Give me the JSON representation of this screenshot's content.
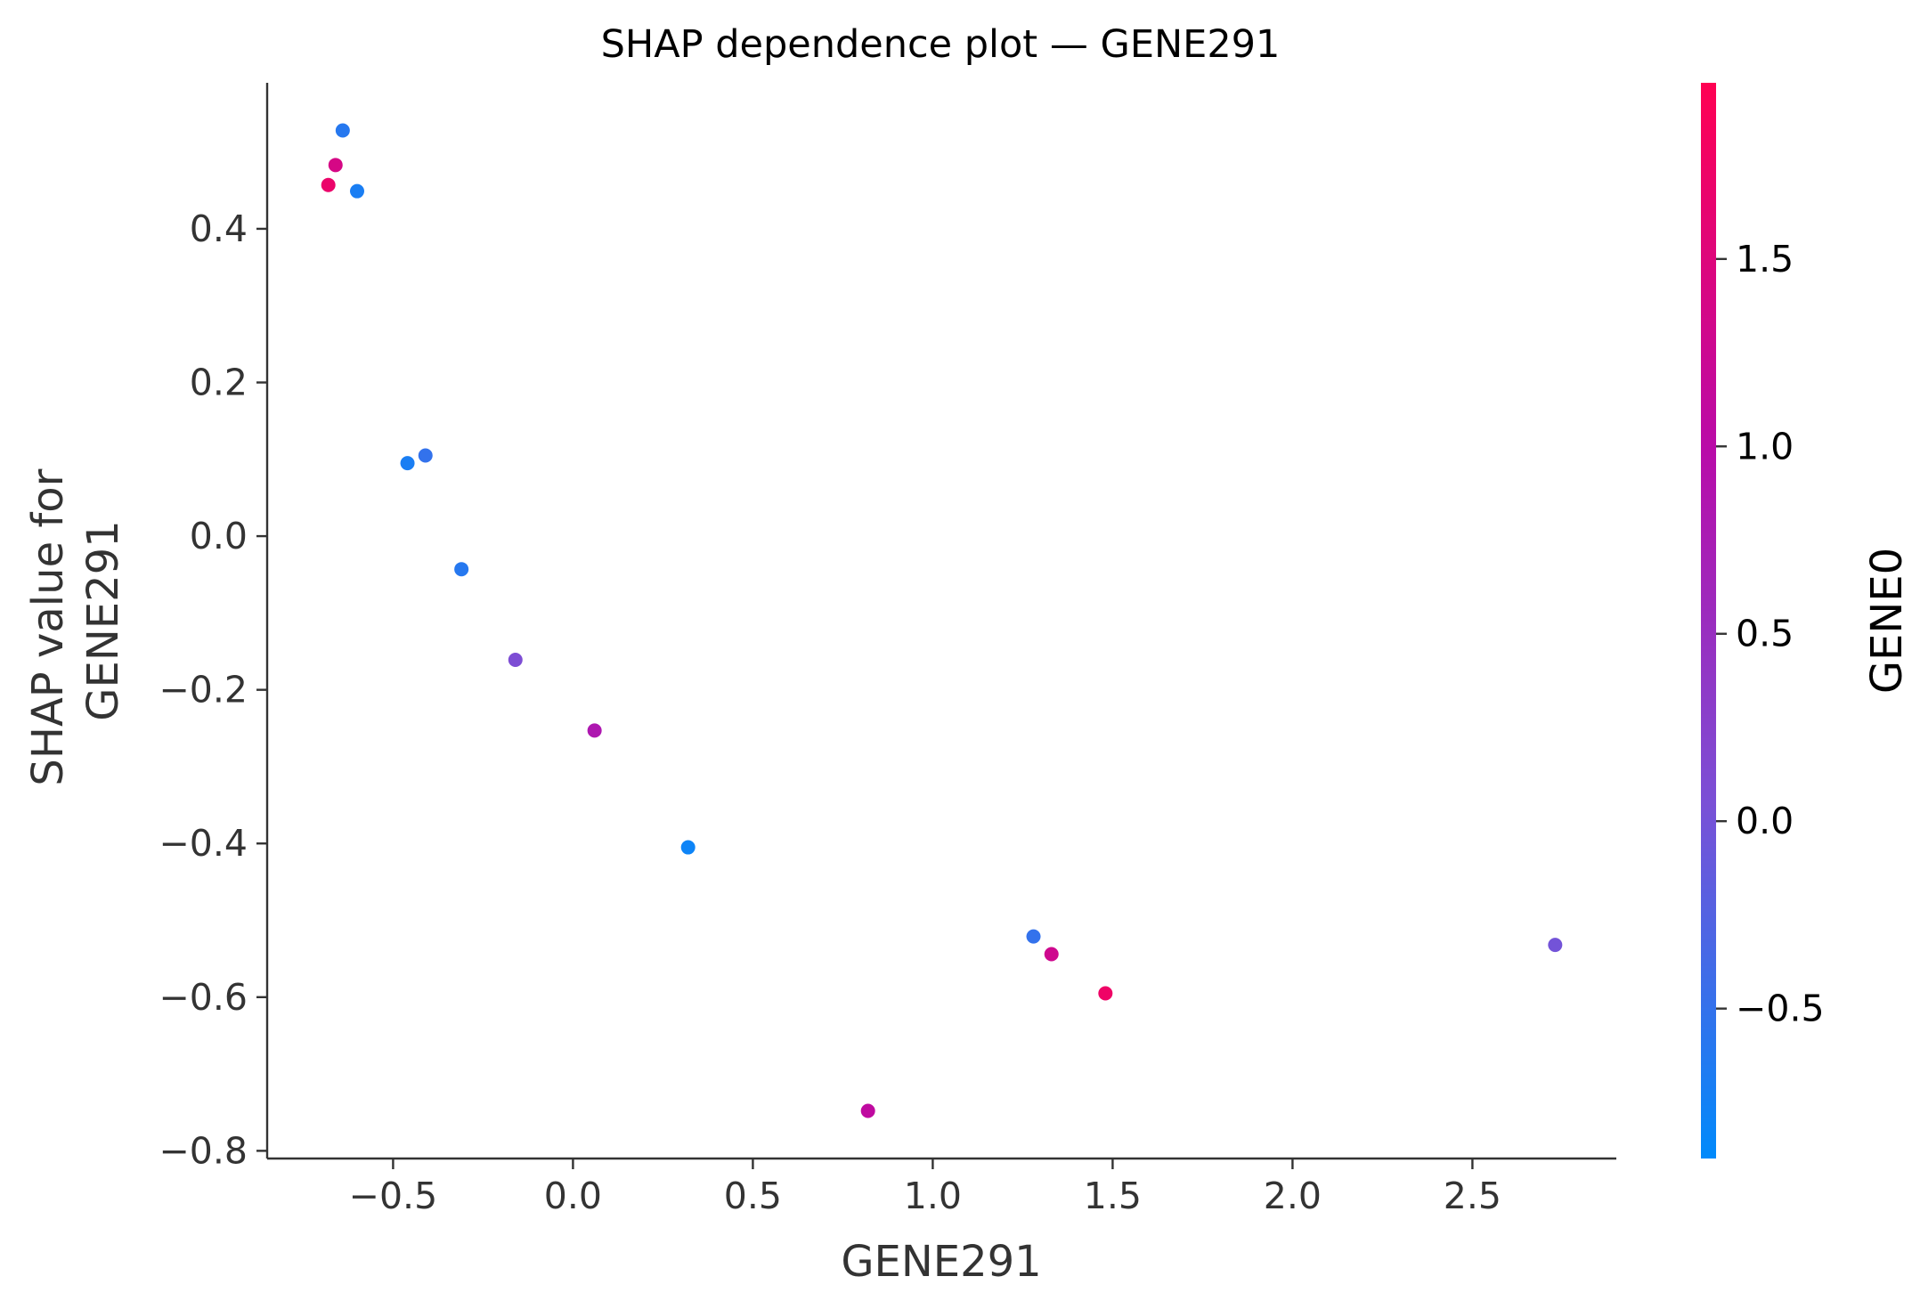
{
  "chart_data": {
    "type": "scatter",
    "title": "SHAP dependence plot — GENE291",
    "xlabel": "GENE291",
    "ylabel_lines": [
      "SHAP value for",
      "GENE291"
    ],
    "xlim": [
      -0.85,
      2.9
    ],
    "ylim": [
      -0.81,
      0.59
    ],
    "x_ticks": [
      -0.5,
      0.0,
      0.5,
      1.0,
      1.5,
      2.0,
      2.5
    ],
    "x_tick_labels": [
      "−0.5",
      "0.0",
      "0.5",
      "1.0",
      "1.5",
      "2.0",
      "2.5"
    ],
    "y_ticks": [
      0.4,
      0.2,
      0.0,
      -0.2,
      -0.4,
      -0.6,
      -0.8
    ],
    "y_tick_labels": [
      "0.4",
      "0.2",
      "0.0",
      "−0.2",
      "−0.4",
      "−0.6",
      "−0.8"
    ],
    "grid": false,
    "colorbar": {
      "label": "GENE0",
      "range": [
        -0.9,
        1.97
      ],
      "ticks": [
        1.5,
        1.0,
        0.5,
        0.0,
        -0.5
      ],
      "tick_labels": [
        "1.5",
        "1.0",
        "0.5",
        "0.0",
        "−0.5"
      ],
      "colors": [
        "#008afb",
        "#7a50d6",
        "#b90ba8",
        "#ff0152"
      ]
    },
    "points": [
      {
        "x": -0.64,
        "y": 0.528,
        "c": -0.6
      },
      {
        "x": -0.66,
        "y": 0.483,
        "c": 1.4
      },
      {
        "x": -0.68,
        "y": 0.457,
        "c": 1.7
      },
      {
        "x": -0.6,
        "y": 0.449,
        "c": -0.7
      },
      {
        "x": -0.46,
        "y": 0.095,
        "c": -0.7
      },
      {
        "x": -0.41,
        "y": 0.105,
        "c": -0.5
      },
      {
        "x": -0.31,
        "y": -0.043,
        "c": -0.6
      },
      {
        "x": -0.16,
        "y": -0.161,
        "c": 0.1
      },
      {
        "x": 0.06,
        "y": -0.253,
        "c": 0.85
      },
      {
        "x": 0.32,
        "y": -0.405,
        "c": -0.8
      },
      {
        "x": 0.82,
        "y": -0.748,
        "c": 1.1
      },
      {
        "x": 1.28,
        "y": -0.521,
        "c": -0.5
      },
      {
        "x": 1.33,
        "y": -0.544,
        "c": 1.3
      },
      {
        "x": 1.48,
        "y": -0.595,
        "c": 1.75
      },
      {
        "x": 2.73,
        "y": -0.532,
        "c": 0.0
      }
    ]
  }
}
